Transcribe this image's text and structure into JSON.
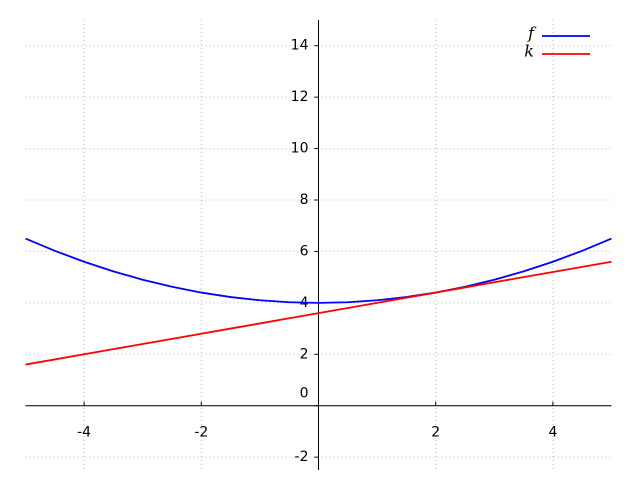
{
  "chart_data": {
    "type": "line",
    "x": [
      -5,
      -4.5,
      -4,
      -3.5,
      -3,
      -2.5,
      -2,
      -1.5,
      -1,
      -0.5,
      0,
      0.5,
      1,
      1.5,
      2,
      2.5,
      3,
      3.5,
      4,
      4.5,
      5
    ],
    "series": [
      {
        "name": "f",
        "color": "#0000ff",
        "values": [
          6.5,
          6.025,
          5.6,
          5.225,
          4.9,
          4.625,
          4.4,
          4.225,
          4.1,
          4.025,
          4,
          4.025,
          4.1,
          4.225,
          4.4,
          4.625,
          4.9,
          5.225,
          5.6,
          6.025,
          6.5
        ]
      },
      {
        "name": "k",
        "color": "#ff0000",
        "values": [
          1.6,
          1.8,
          2.0,
          2.2,
          2.4,
          2.6,
          2.8,
          3.0,
          3.2,
          3.4,
          3.6,
          3.8,
          4.0,
          4.2,
          4.4,
          4.6,
          4.8,
          5.0,
          5.2,
          5.4,
          5.6
        ]
      }
    ],
    "xlim": [
      -5,
      5
    ],
    "ylim": [
      -2.5,
      15
    ],
    "xticks": [
      -4,
      -2,
      2,
      4
    ],
    "yticks": [
      -2,
      0,
      2,
      4,
      6,
      8,
      10,
      12,
      14
    ],
    "grid": true,
    "legend": "upper right"
  }
}
